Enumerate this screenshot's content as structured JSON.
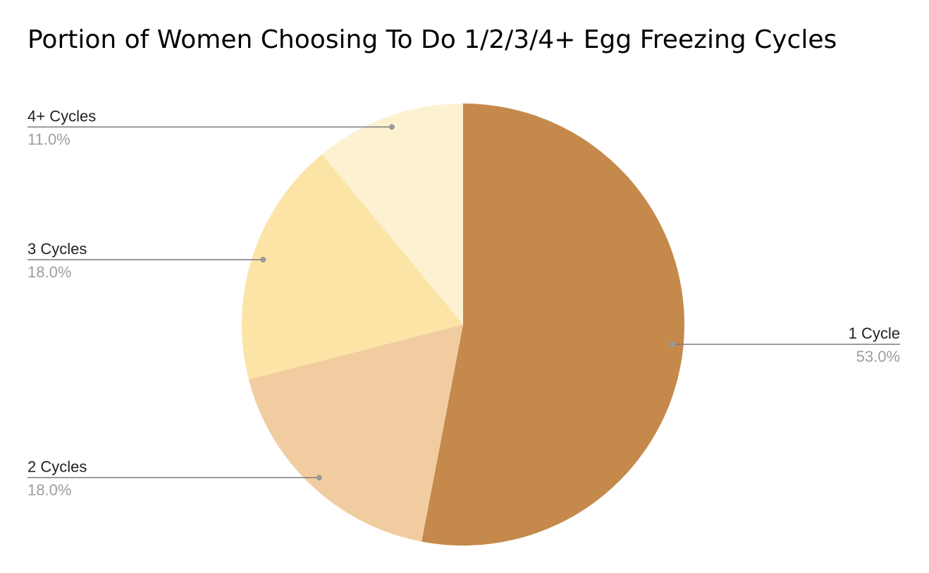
{
  "chart_data": {
    "type": "pie",
    "title": "Portion of Women Choosing To Do 1/2/3/4+ Egg Freezing Cycles",
    "slices": [
      {
        "label": "1 Cycle",
        "value": 53.0,
        "value_label": "53.0%",
        "color": "#C4894B",
        "leader_color": "#7a7a7a"
      },
      {
        "label": "2 Cycles",
        "value": 18.0,
        "value_label": "18.0%",
        "color": "#F2CCA1",
        "leader_color": "#7a7a7a"
      },
      {
        "label": "3 Cycles",
        "value": 18.0,
        "value_label": "18.0%",
        "color": "#FBE4A5",
        "leader_color": "#7a7a7a"
      },
      {
        "label": "4+ Cycles",
        "value": 11.0,
        "value_label": "11.0%",
        "color": "#FCF1D1",
        "leader_color": "#7a7a7a"
      }
    ],
    "start_angle": "12 o'clock",
    "direction": "clockwise",
    "legend": "none"
  }
}
